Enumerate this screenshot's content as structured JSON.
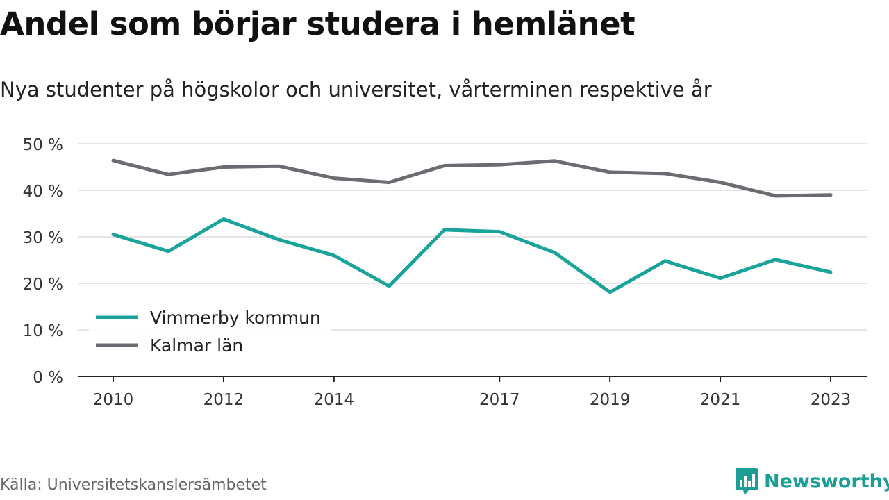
{
  "title": "Andel som börjar studera i hemlänet",
  "subtitle": "Nya studenter på högskolor och universitet, vårterminen respektive år",
  "source": "Källa: Universitetskanslersämbetet",
  "brand": {
    "name": "Newsworthy",
    "icon": "newsworthy-logo-icon"
  },
  "colors": {
    "teal": "#1aa39a",
    "gray": "#6b6b72",
    "grid": "#dddddd",
    "axis": "#222222"
  },
  "chart_data": {
    "type": "line",
    "title": "Andel som börjar studera i hemlänet",
    "subtitle": "Nya studenter på högskolor och universitet, vårterminen respektive år",
    "xlabel": "",
    "ylabel": "",
    "x": [
      2010,
      2011,
      2012,
      2013,
      2014,
      2015,
      2016,
      2017,
      2018,
      2019,
      2020,
      2021,
      2022,
      2023
    ],
    "xticks": [
      2010,
      2012,
      2014,
      2017,
      2019,
      2021,
      2023
    ],
    "yticks": [
      0,
      10,
      20,
      30,
      40,
      50
    ],
    "ytick_labels": [
      "0 %",
      "10 %",
      "20 %",
      "30 %",
      "40 %",
      "50 %"
    ],
    "ylim": [
      0,
      50
    ],
    "xlim": [
      2010,
      2023
    ],
    "grid": true,
    "legend_position": "bottom-left",
    "series": [
      {
        "name": "Vimmerby kommun",
        "color": "#1aa39a",
        "values": [
          30.5,
          26.9,
          33.8,
          29.4,
          26.0,
          19.4,
          31.5,
          31.1,
          26.6,
          18.1,
          24.8,
          21.1,
          25.1,
          22.4
        ]
      },
      {
        "name": "Kalmar län",
        "color": "#6b6b72",
        "values": [
          46.4,
          43.4,
          45.0,
          45.2,
          42.6,
          41.7,
          45.3,
          45.5,
          46.3,
          43.9,
          43.6,
          41.7,
          38.8,
          39.0
        ]
      }
    ]
  }
}
